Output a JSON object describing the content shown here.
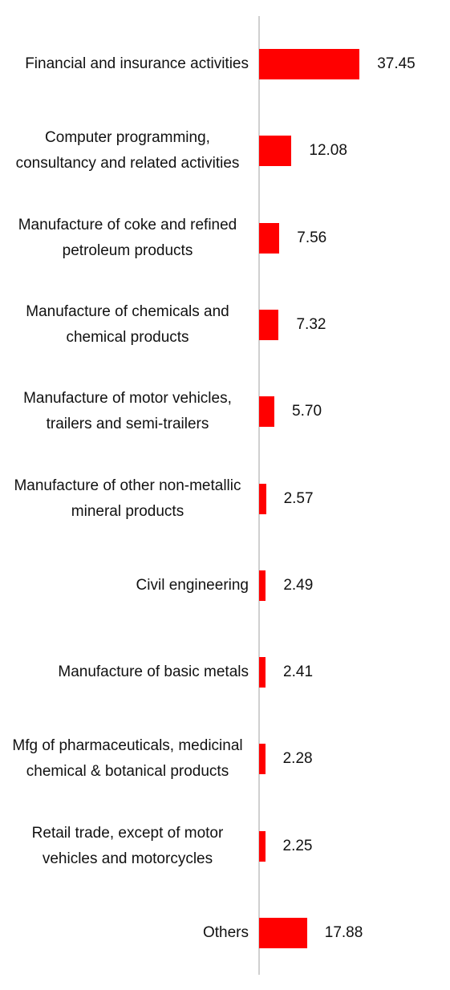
{
  "chart_data": {
    "type": "bar",
    "orientation": "horizontal",
    "color": "#ff0000",
    "categories": [
      "Financial and insurance activities",
      "Computer programming, consultancy and related activities",
      "Manufacture of coke and refined petroleum products",
      "Manufacture of chemicals and chemical products",
      "Manufacture of motor vehicles, trailers and semi-trailers",
      "Manufacture of other non-metallic mineral products",
      "Civil engineering",
      "Manufacture of basic metals",
      "Mfg of pharmaceuticals, medicinal chemical & botanical products",
      "Retail trade, except of motor vehicles and motorcycles",
      "Others"
    ],
    "values": [
      37.45,
      12.08,
      7.56,
      7.32,
      5.7,
      2.57,
      2.49,
      2.41,
      2.28,
      2.25,
      17.88
    ],
    "value_labels": [
      "37.45",
      "12.08",
      "7.56",
      "7.32",
      "5.70",
      "2.57",
      "2.49",
      "2.41",
      "2.28",
      "2.25",
      "17.88"
    ],
    "xlim": [
      0,
      70
    ]
  }
}
